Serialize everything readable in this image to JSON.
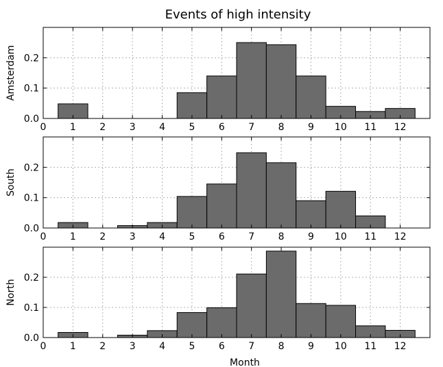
{
  "chart_data": {
    "type": "bar",
    "title": "Events of high intensity",
    "xlabel": "Month",
    "xlim": [
      0,
      13
    ],
    "x_ticks": [
      0,
      1,
      2,
      3,
      4,
      5,
      6,
      7,
      8,
      9,
      10,
      11,
      12
    ],
    "y_ticks": [
      0.0,
      0.1,
      0.2
    ],
    "y_tick_labels": [
      "0.0",
      "0.1",
      "0.2"
    ],
    "ylim": [
      0,
      0.3
    ],
    "grid": true,
    "categories": [
      1,
      2,
      3,
      4,
      5,
      6,
      7,
      8,
      9,
      10,
      11,
      12
    ],
    "panels": [
      {
        "ylabel": "Amsterdam",
        "values": [
          0.048,
          0.0,
          0.0,
          0.0,
          0.085,
          0.14,
          0.25,
          0.243,
          0.14,
          0.04,
          0.023,
          0.033
        ]
      },
      {
        "ylabel": "South",
        "values": [
          0.018,
          0.0,
          0.008,
          0.018,
          0.104,
          0.145,
          0.248,
          0.215,
          0.09,
          0.121,
          0.04,
          0.0
        ]
      },
      {
        "ylabel": "North",
        "values": [
          0.017,
          0.0,
          0.008,
          0.023,
          0.083,
          0.099,
          0.211,
          0.287,
          0.113,
          0.107,
          0.039,
          0.024
        ]
      }
    ],
    "colors": {
      "bar": "#6b6b6b",
      "edge": "#000000"
    }
  }
}
